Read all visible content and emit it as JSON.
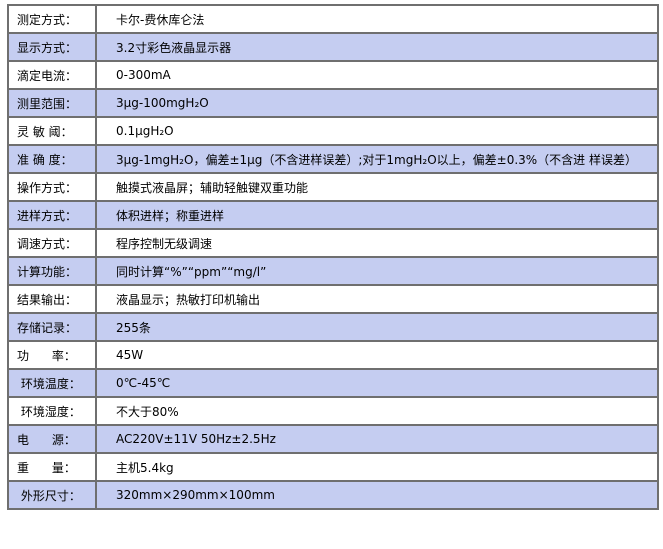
{
  "rows": [
    {
      "label": "测定方式：",
      "value": "卡尔-费休库仑法"
    },
    {
      "label": "显示方式：",
      "value": "3.2寸彩色液晶显示器"
    },
    {
      "label": "滴定电流：",
      "value": "0-300mA"
    },
    {
      "label": "测里范围：",
      "value": "3μg-100mgH₂O"
    },
    {
      "label": "灵 敏 阈：",
      "value": "0.1μgH₂O"
    },
    {
      "label": "准 确 度：",
      "value": "3μg-1mgH₂O，偏差±1μg（不含进样误差）;对于1mgH₂O以上，偏差±0.3%（不含进 样误差）"
    },
    {
      "label": "操作方式：",
      "value": "触摸式液晶屏；辅助轻触键双重功能"
    },
    {
      "label": "进样方式：",
      "value": "体积进样；称重进样"
    },
    {
      "label": "调速方式：",
      "value": "程序控制无级调速"
    },
    {
      "label": "计算功能：",
      "value": "同时计算“%”“ppm”“mg/l”"
    },
    {
      "label": "结果输出：",
      "value": "液晶显示；热敏打印机输出"
    },
    {
      "label": "存储记录：",
      "value": "255条"
    },
    {
      "label": "功      率：",
      "value": "45W"
    },
    {
      "label": " 环境温度：",
      "value": "0℃-45℃"
    },
    {
      "label": " 环境湿度：",
      "value": "不大于80%"
    },
    {
      "label": "电      源：",
      "value": "AC220V±11V 50Hz±2.5Hz"
    },
    {
      "label": "重      量：",
      "value": "主机5.4kg"
    },
    {
      "label": " 外形尺寸：",
      "value": "320mm×290mm×100mm"
    }
  ],
  "colors": {
    "alt_row": "#c5cdf1",
    "border": "#6f6f6f"
  }
}
